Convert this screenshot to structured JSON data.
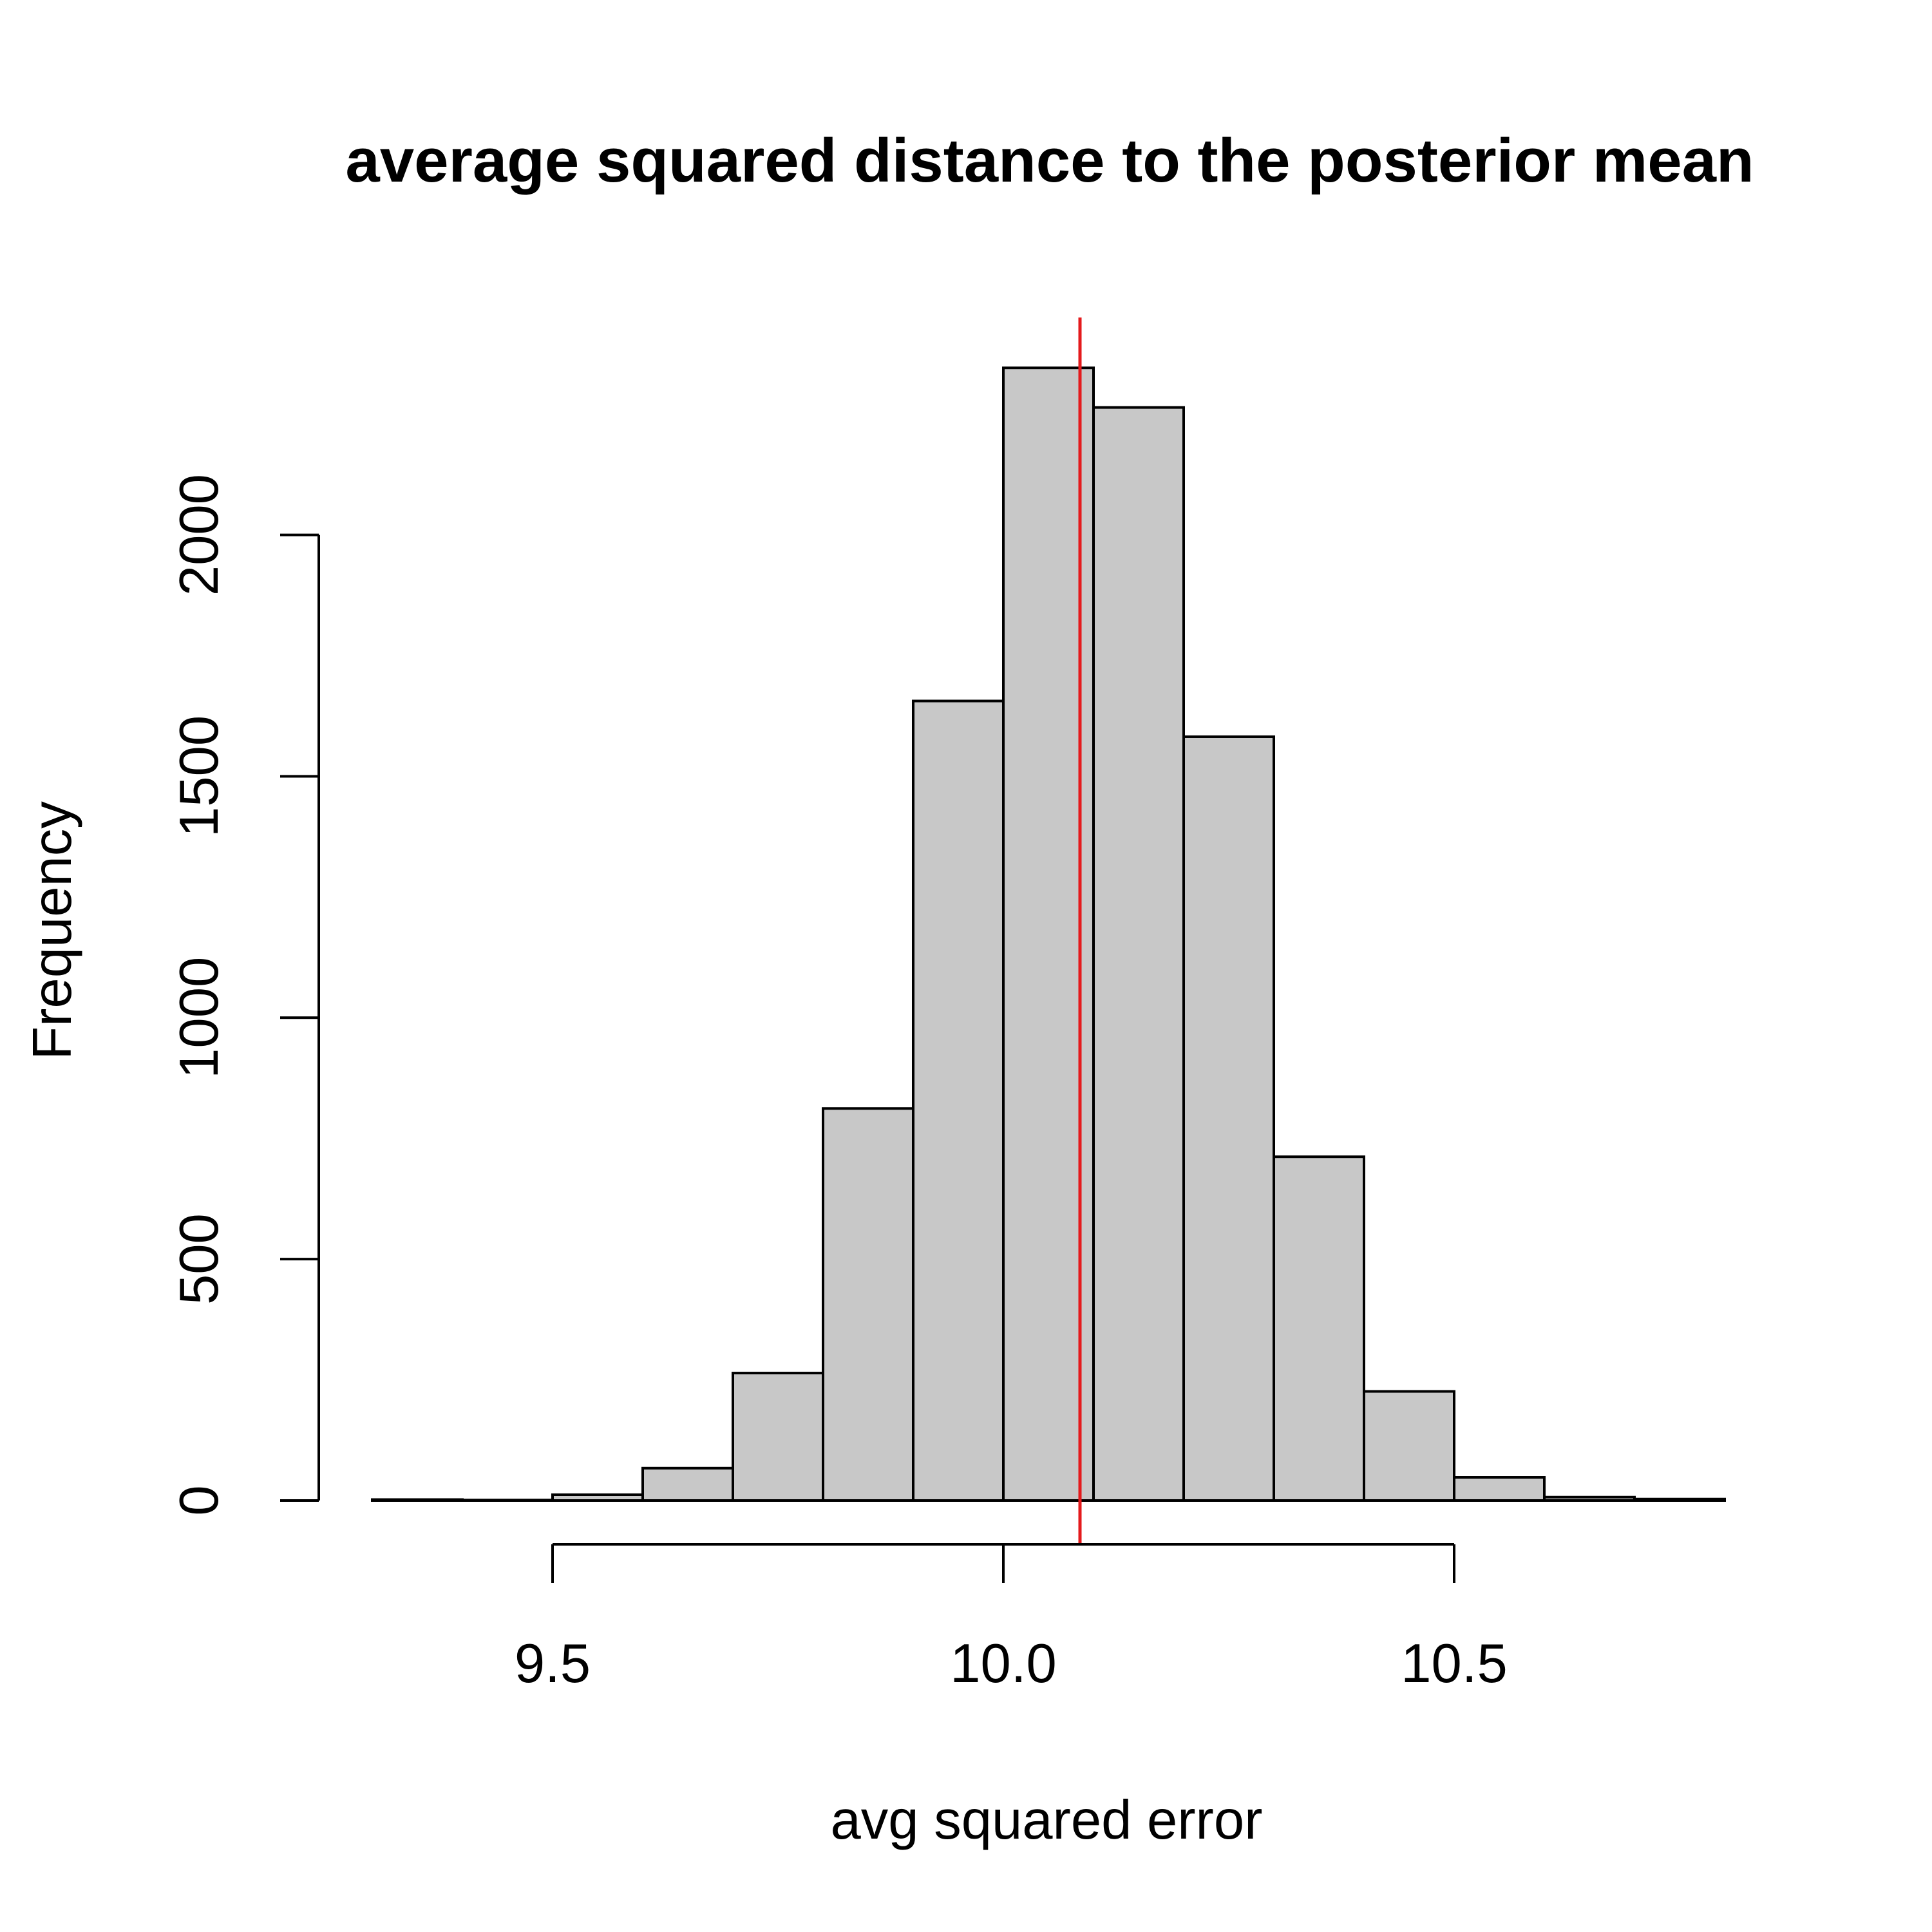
{
  "chart_data": {
    "type": "bar",
    "title": "average squared distance to the posterior mean",
    "xlabel": "avg squared error",
    "ylabel": "Frequency",
    "bin_edges": [
      9.3,
      9.4,
      9.5,
      9.6,
      9.7,
      9.8,
      9.9,
      10.0,
      10.1,
      10.2,
      10.3,
      10.4,
      10.5,
      10.6,
      10.7,
      10.8
    ],
    "values": [
      2,
      1,
      12,
      67,
      264,
      812,
      1656,
      2346,
      2264,
      1582,
      712,
      226,
      48,
      7,
      3
    ],
    "xlim": [
      9.3,
      10.8
    ],
    "ylim": [
      0,
      2346
    ],
    "x_ticks": [
      9.5,
      10.0,
      10.5
    ],
    "x_tick_labels": [
      "9.5",
      "10.0",
      "10.5"
    ],
    "y_ticks": [
      0,
      500,
      1000,
      1500,
      2000
    ],
    "y_tick_labels": [
      "0",
      "500",
      "1000",
      "1500",
      "2000"
    ],
    "reference_line": {
      "x": 10.085,
      "color": "#e41a1c"
    },
    "bar_color": "#c8c8c8",
    "grid": false
  }
}
